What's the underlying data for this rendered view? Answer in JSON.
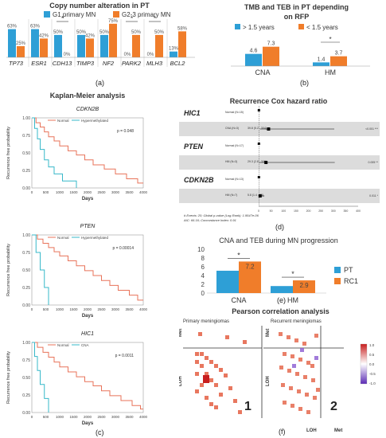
{
  "colors": {
    "blue": "#2e9fd6",
    "orange": "#f07d2a",
    "km_normal": "#e8735a",
    "km_alt": "#37b8c9",
    "heat_pos": "#e04a2a",
    "heat_neg": "#8a5ad1"
  },
  "panel_a": {
    "title": "Copy number alteration in PT",
    "legend": [
      "G1 primary MN",
      "G2-3 primary MN"
    ],
    "label": "(a)",
    "chart_data": {
      "type": "bar",
      "categories": [
        "TP73",
        "ESR1",
        "CDH13",
        "TIMP3",
        "NF2",
        "PARK2",
        "MLH3",
        "BCL2"
      ],
      "series": [
        {
          "name": "G1 primary MN",
          "values": [
            63,
            63,
            50,
            50,
            50,
            0,
            0,
            13
          ]
        },
        {
          "name": "G2-3 primary MN",
          "values": [
            25,
            42,
            0,
            42,
            75,
            50,
            50,
            58
          ]
        }
      ],
      "value_labels": [
        [
          "63%",
          "25%"
        ],
        [
          "63%",
          "42%"
        ],
        [
          "50%",
          "0%"
        ],
        [
          "50%",
          "42%"
        ],
        [
          "50%",
          "75%"
        ],
        [
          "0%",
          "50%"
        ],
        [
          "0%",
          "50%"
        ],
        [
          "13%",
          "58%"
        ]
      ],
      "significant": [
        "CDH13",
        "PARK2",
        "MLH3"
      ],
      "ylim": [
        0,
        80
      ]
    }
  },
  "panel_b": {
    "title_line1": "TMB and TEB in PT depending",
    "title_line2": "on RFP",
    "legend": [
      "> 1.5 years",
      "< 1.5 years"
    ],
    "label": "(b)",
    "chart_data": {
      "type": "bar",
      "categories": [
        "CNA",
        "HM"
      ],
      "series": [
        {
          "name": "> 1.5 years",
          "values": [
            4.6,
            1.4
          ]
        },
        {
          "name": "< 1.5 years",
          "values": [
            7.3,
            3.7
          ]
        }
      ],
      "value_labels": [
        [
          "4.6",
          "7.3"
        ],
        [
          "1.4",
          "3.7"
        ]
      ],
      "significant": [
        "HM"
      ],
      "ylim": [
        0,
        9
      ]
    }
  },
  "panel_c": {
    "title": "Kaplan-Meier analysis",
    "label": "(c)",
    "plots": [
      {
        "gene": "CDKN2B",
        "legend": [
          "Normal",
          "Hypermethylated"
        ],
        "pvalue": "p = 0.048",
        "ylabel": "Recurrence free probability",
        "xlabel": "Days",
        "xticks": [
          "0",
          "500",
          "1000",
          "1500",
          "2000",
          "2500",
          "3000",
          "3500",
          "4000"
        ],
        "yticks": [
          "0.00",
          "0.25",
          "0.50",
          "0.75",
          "1.00"
        ],
        "chart_data": {
          "type": "line",
          "xlim": [
            0,
            4000
          ],
          "ylim": [
            0,
            1
          ],
          "series": [
            {
              "name": "Normal",
              "points": [
                [
                  0,
                  1
                ],
                [
                  150,
                  0.93
                ],
                [
                  300,
                  0.87
                ],
                [
                  450,
                  0.8
                ],
                [
                  600,
                  0.73
                ],
                [
                  800,
                  0.67
                ],
                [
                  1000,
                  0.6
                ],
                [
                  1300,
                  0.53
                ],
                [
                  1600,
                  0.47
                ],
                [
                  1900,
                  0.4
                ],
                [
                  2200,
                  0.33
                ],
                [
                  2600,
                  0.27
                ],
                [
                  3000,
                  0.2
                ],
                [
                  3400,
                  0.13
                ],
                [
                  3800,
                  0.07
                ],
                [
                  4000,
                  0.07
                ]
              ]
            },
            {
              "name": "Hypermethylated",
              "points": [
                [
                  0,
                  1
                ],
                [
                  100,
                  0.85
                ],
                [
                  200,
                  0.7
                ],
                [
                  300,
                  0.55
                ],
                [
                  450,
                  0.4
                ],
                [
                  600,
                  0.3
                ],
                [
                  800,
                  0.2
                ],
                [
                  1100,
                  0.1
                ],
                [
                  1600,
                  0
                ]
              ]
            }
          ]
        }
      },
      {
        "gene": "PTEN",
        "legend": [
          "Normal",
          "Hypermethylated"
        ],
        "pvalue": "p = 0.00014",
        "ylabel": "Recurrence free probability",
        "xlabel": "Days",
        "xticks": [
          "0",
          "500",
          "1000",
          "1500",
          "2000",
          "2500",
          "3000",
          "3500",
          "4000"
        ],
        "yticks": [
          "0.00",
          "0.25",
          "0.50",
          "0.75",
          "1.00"
        ],
        "chart_data": {
          "type": "line",
          "xlim": [
            0,
            4000
          ],
          "ylim": [
            0,
            1
          ],
          "series": [
            {
              "name": "Normal",
              "points": [
                [
                  0,
                  1
                ],
                [
                  200,
                  0.94
                ],
                [
                  400,
                  0.88
                ],
                [
                  600,
                  0.82
                ],
                [
                  800,
                  0.76
                ],
                [
                  1000,
                  0.7
                ],
                [
                  1300,
                  0.63
                ],
                [
                  1600,
                  0.56
                ],
                [
                  1900,
                  0.49
                ],
                [
                  2200,
                  0.42
                ],
                [
                  2500,
                  0.35
                ],
                [
                  2800,
                  0.28
                ],
                [
                  3100,
                  0.21
                ],
                [
                  3500,
                  0.14
                ],
                [
                  3800,
                  0.07
                ],
                [
                  4000,
                  0.07
                ]
              ]
            },
            {
              "name": "Hypermethylated",
              "points": [
                [
                  0,
                  1
                ],
                [
                  150,
                  0.75
                ],
                [
                  300,
                  0.5
                ],
                [
                  450,
                  0.25
                ],
                [
                  600,
                  0
                ]
              ]
            }
          ]
        }
      },
      {
        "gene": "HIC1",
        "legend": [
          "Normal",
          "CNA"
        ],
        "pvalue": "p = 0.0011",
        "ylabel": "Recurrence free probability",
        "xlabel": "Days",
        "xticks": [
          "0",
          "500",
          "1000",
          "1500",
          "2000",
          "2500",
          "3000",
          "3500",
          "4000"
        ],
        "yticks": [
          "0.00",
          "0.25",
          "0.50",
          "0.75",
          "1.00"
        ],
        "chart_data": {
          "type": "line",
          "xlim": [
            0,
            4000
          ],
          "ylim": [
            0,
            1
          ],
          "series": [
            {
              "name": "Normal",
              "points": [
                [
                  0,
                  1
                ],
                [
                  200,
                  0.93
                ],
                [
                  400,
                  0.86
                ],
                [
                  600,
                  0.79
                ],
                [
                  800,
                  0.72
                ],
                [
                  1000,
                  0.65
                ],
                [
                  1300,
                  0.58
                ],
                [
                  1600,
                  0.51
                ],
                [
                  1900,
                  0.44
                ],
                [
                  2200,
                  0.38
                ],
                [
                  2500,
                  0.31
                ],
                [
                  2800,
                  0.24
                ],
                [
                  3200,
                  0.17
                ],
                [
                  3600,
                  0.1
                ],
                [
                  3900,
                  0.05
                ],
                [
                  4000,
                  0.05
                ]
              ]
            },
            {
              "name": "CNA",
              "points": [
                [
                  0,
                  1
                ],
                [
                  100,
                  0.8
                ],
                [
                  200,
                  0.6
                ],
                [
                  300,
                  0.4
                ],
                [
                  450,
                  0.2
                ],
                [
                  600,
                  0
                ]
              ]
            }
          ]
        }
      }
    ]
  },
  "panel_d": {
    "title": "Recurrence Cox hazard ratio",
    "label": "(d)",
    "rows": [
      {
        "gene": "HIC1",
        "ref": "Normal (N=15)",
        "alt": "CNA (N=3)",
        "hr": "39.8 (5.2 - 304)",
        "p": "<0.001 ***"
      },
      {
        "gene": "PTEN",
        "ref": "Normal (N=17)",
        "alt": "HM (N=3)",
        "hr": "29.3 (2.8 - 306)",
        "p": "0.005 **"
      },
      {
        "gene": "CDKN2B",
        "ref": "Normal (N=13)",
        "alt": "HM (N=7)",
        "hr": "5.8 (1.4 - 23)",
        "p": "0.011 *"
      }
    ],
    "footer1": "# Events: 20; Global p-value (Log-Rank): 1.9547e-06",
    "footer2": "AIC: 66.16; Concordance Index: 0.91",
    "chart_data": {
      "type": "scatter",
      "hr": [
        39.8,
        29.3,
        5.8
      ],
      "ci_low": [
        5.2,
        2.8,
        1.4
      ],
      "ci_high": [
        304,
        306,
        23
      ],
      "xticks": [
        "0",
        "50",
        "100",
        "150",
        "200",
        "250",
        "300",
        "350",
        "400"
      ],
      "xlim": [
        0,
        400
      ]
    }
  },
  "panel_e": {
    "title": "CNA and TEB during MN progression",
    "legend": [
      "PT",
      "RC1"
    ],
    "label": "(e)",
    "chart_data": {
      "type": "bar",
      "categories": [
        "CNA",
        "HM"
      ],
      "series": [
        {
          "name": "PT",
          "values": [
            5.1,
            1.6
          ]
        },
        {
          "name": "RC1",
          "values": [
            7.2,
            2.9
          ]
        }
      ],
      "value_labels": [
        [
          "",
          "7.2"
        ],
        [
          "",
          "2.9"
        ]
      ],
      "significant": [
        "CNA",
        "HM"
      ],
      "yticks": [
        "0",
        "2",
        "4",
        "6",
        "8",
        "10"
      ],
      "ylim": [
        0,
        10
      ]
    }
  },
  "panel_f": {
    "title": "Pearson correlation analysis",
    "label": "(f)",
    "subtitles": [
      "Primary meningiomas",
      "Recurrent meningiomas"
    ],
    "axis_labels": {
      "met": "Met",
      "loh": "LOH"
    },
    "quadrants": [
      "1",
      "2"
    ],
    "colorbar": [
      "1.0",
      "0.5",
      "0.0",
      "-0.5",
      "-1.0"
    ]
  }
}
